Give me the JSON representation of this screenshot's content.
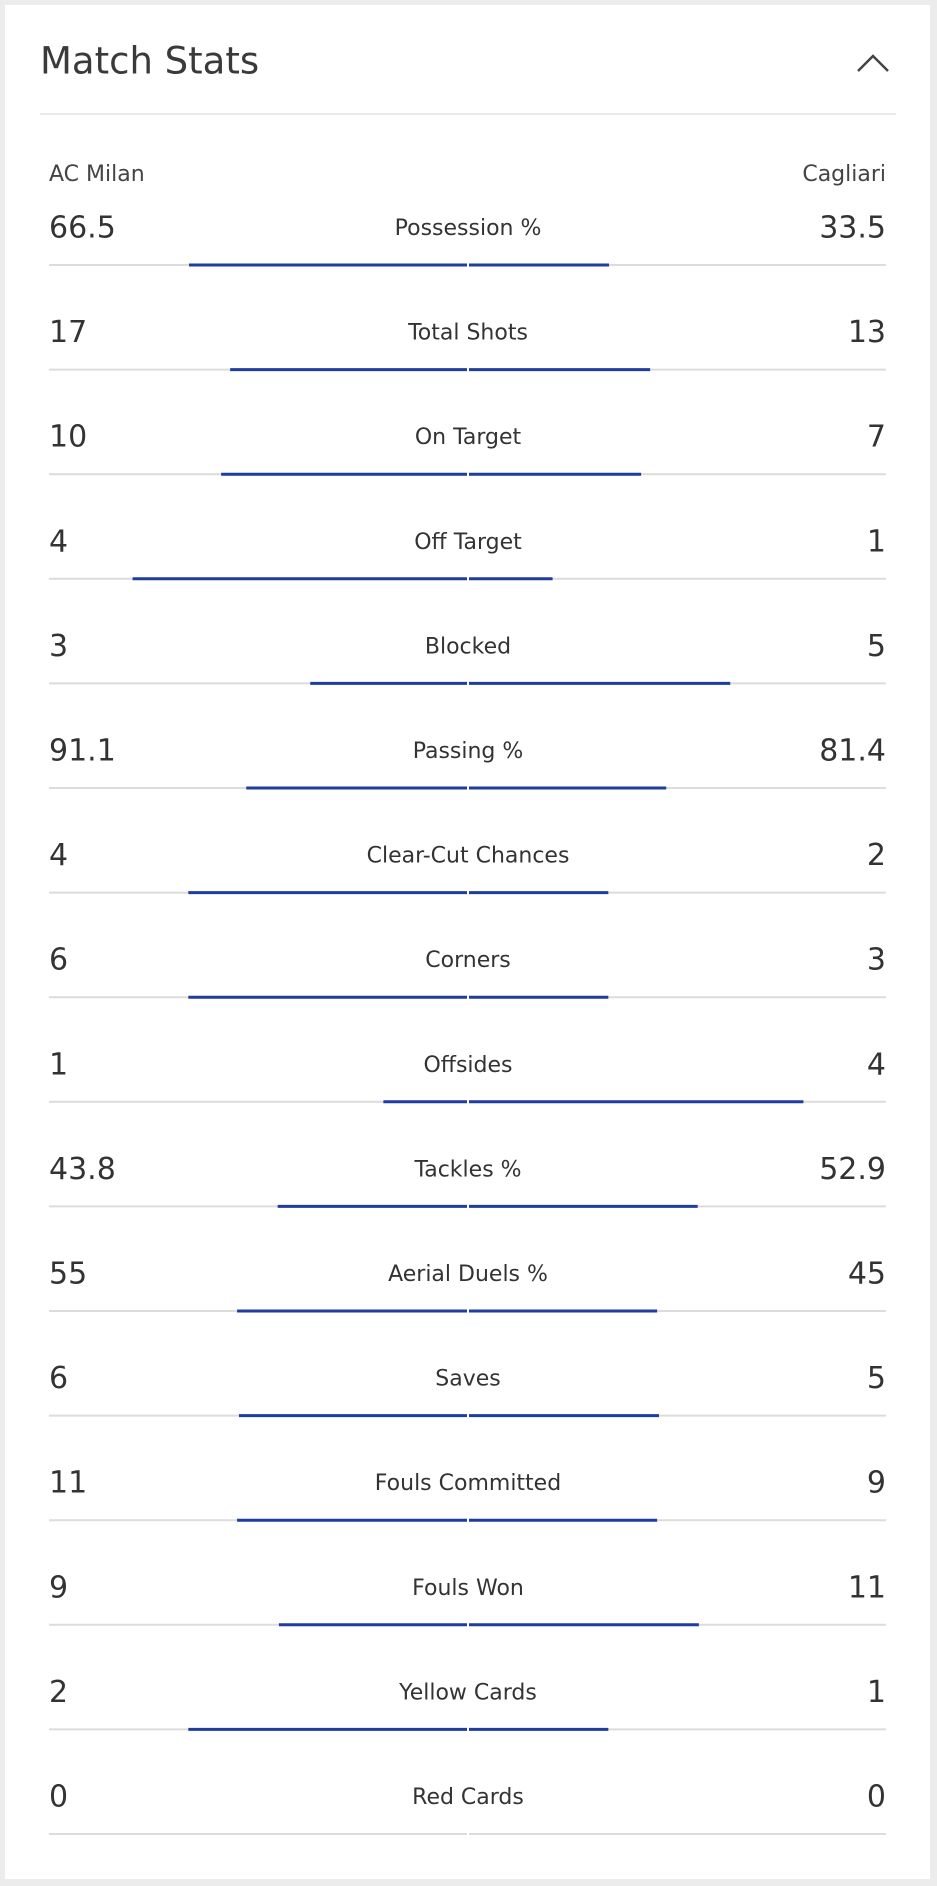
{
  "header": {
    "title": "Match Stats"
  },
  "teams": {
    "home": "AC Milan",
    "away": "Cagliari"
  },
  "stats": [
    {
      "label": "Possession %",
      "home": 66.5,
      "away": 33.5
    },
    {
      "label": "Total Shots",
      "home": 17,
      "away": 13
    },
    {
      "label": "On Target",
      "home": 10,
      "away": 7
    },
    {
      "label": "Off Target",
      "home": 4,
      "away": 1
    },
    {
      "label": "Blocked",
      "home": 3,
      "away": 5
    },
    {
      "label": "Passing %",
      "home": 91.1,
      "away": 81.4
    },
    {
      "label": "Clear-Cut Chances",
      "home": 4,
      "away": 2
    },
    {
      "label": "Corners",
      "home": 6,
      "away": 3
    },
    {
      "label": "Offsides",
      "home": 1,
      "away": 4
    },
    {
      "label": "Tackles %",
      "home": 43.8,
      "away": 52.9
    },
    {
      "label": "Aerial Duels %",
      "home": 55,
      "away": 45
    },
    {
      "label": "Saves",
      "home": 6,
      "away": 5
    },
    {
      "label": "Fouls Committed",
      "home": 11,
      "away": 9
    },
    {
      "label": "Fouls Won",
      "home": 9,
      "away": 11
    },
    {
      "label": "Yellow Cards",
      "home": 2,
      "away": 1
    },
    {
      "label": "Red Cards",
      "home": 0,
      "away": 0
    }
  ]
}
